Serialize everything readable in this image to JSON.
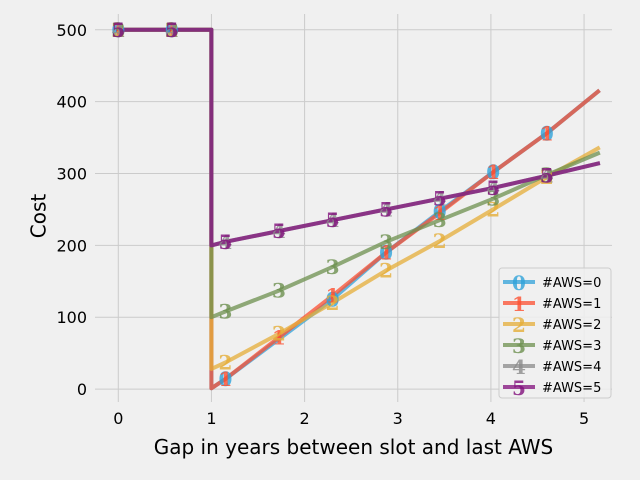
{
  "chart_data": {
    "type": "line",
    "title": "",
    "xlabel": "Gap in years between slot and last AWS",
    "ylabel": "Cost",
    "xlim": [
      -0.25,
      5.3
    ],
    "ylim": [
      -18,
      522
    ],
    "x_ticks": [
      "0",
      "1",
      "2",
      "3",
      "4",
      "5"
    ],
    "y_ticks": [
      "0",
      "100",
      "200",
      "300",
      "400",
      "500"
    ],
    "grid": true,
    "legend_position": "lower-right",
    "marker_x": [
      0,
      0.575,
      1.15,
      1.725,
      2.3,
      2.875,
      3.45,
      4.025,
      4.6
    ],
    "series": [
      {
        "name": "#AWS=0",
        "marker": "0",
        "color": "#30a2da",
        "points": [
          [
            0,
            500
          ],
          [
            1,
            500
          ],
          [
            1,
            1
          ],
          [
            1.15,
            14
          ],
          [
            2.3,
            125
          ],
          [
            2.875,
            190
          ],
          [
            3.45,
            247
          ],
          [
            4.025,
            302
          ],
          [
            4.6,
            356
          ],
          [
            5.15,
            414
          ]
        ],
        "marker_points": [
          [
            0,
            500
          ],
          [
            0.575,
            500
          ],
          [
            1.15,
            14
          ],
          [
            2.3,
            125
          ],
          [
            2.875,
            190
          ],
          [
            3.45,
            247
          ],
          [
            4.025,
            302
          ],
          [
            4.6,
            356
          ]
        ]
      },
      {
        "name": "#AWS=1",
        "marker": "1",
        "color": "#fc4f30",
        "points": [
          [
            0,
            500
          ],
          [
            1,
            500
          ],
          [
            1,
            1
          ],
          [
            1.15,
            14
          ],
          [
            1.725,
            72
          ],
          [
            2.3,
            130
          ],
          [
            2.875,
            190
          ],
          [
            3.45,
            245
          ],
          [
            4.025,
            302
          ],
          [
            4.6,
            356
          ],
          [
            5.15,
            414
          ]
        ],
        "marker_points": [
          [
            0,
            500
          ],
          [
            0.575,
            500
          ],
          [
            1.15,
            14
          ],
          [
            1.725,
            72
          ],
          [
            2.3,
            130
          ],
          [
            2.875,
            190
          ],
          [
            3.45,
            245
          ],
          [
            4.025,
            302
          ],
          [
            4.6,
            356
          ]
        ]
      },
      {
        "name": "#AWS=2",
        "marker": "2",
        "color": "#e5ae38",
        "points": [
          [
            0,
            500
          ],
          [
            1,
            500
          ],
          [
            1,
            28
          ],
          [
            1.15,
            37
          ],
          [
            1.725,
            77
          ],
          [
            2.3,
            120
          ],
          [
            2.875,
            165
          ],
          [
            3.45,
            206
          ],
          [
            4.025,
            250
          ],
          [
            4.6,
            295
          ],
          [
            5.15,
            335
          ]
        ],
        "marker_points": [
          [
            0,
            500
          ],
          [
            0.575,
            500
          ],
          [
            1.15,
            37
          ],
          [
            1.725,
            77
          ],
          [
            2.3,
            120
          ],
          [
            2.875,
            165
          ],
          [
            3.45,
            206
          ],
          [
            4.025,
            250
          ],
          [
            4.6,
            295
          ]
        ]
      },
      {
        "name": "#AWS=3",
        "marker": "3",
        "color": "#6d904f",
        "points": [
          [
            0,
            500
          ],
          [
            1,
            500
          ],
          [
            1,
            200
          ],
          [
            1,
            100
          ],
          [
            1.15,
            108
          ],
          [
            1.725,
            137
          ],
          [
            2.3,
            170
          ],
          [
            2.875,
            205
          ],
          [
            3.45,
            235
          ],
          [
            4.025,
            265
          ],
          [
            4.6,
            298
          ],
          [
            5.15,
            328
          ]
        ],
        "marker_points": [
          [
            0,
            500
          ],
          [
            0.575,
            500
          ],
          [
            1.15,
            108
          ],
          [
            1.725,
            137
          ],
          [
            2.3,
            170
          ],
          [
            2.875,
            205
          ],
          [
            3.45,
            235
          ],
          [
            4.025,
            265
          ],
          [
            4.6,
            298
          ]
        ]
      },
      {
        "name": "#AWS=4",
        "marker": "4",
        "color": "#8b8b8b",
        "points": [
          [
            0,
            500
          ],
          [
            1,
            500
          ],
          [
            1,
            200
          ],
          [
            1.15,
            205
          ],
          [
            1.725,
            220
          ],
          [
            2.3,
            235
          ],
          [
            2.875,
            250
          ],
          [
            3.45,
            265
          ],
          [
            4.025,
            280
          ],
          [
            4.6,
            297
          ],
          [
            5.15,
            314
          ]
        ],
        "marker_points": [
          [
            0,
            500
          ],
          [
            0.575,
            500
          ],
          [
            1.15,
            205
          ],
          [
            1.725,
            220
          ],
          [
            2.3,
            235
          ],
          [
            2.875,
            250
          ],
          [
            3.45,
            265
          ],
          [
            4.025,
            280
          ],
          [
            4.6,
            297
          ]
        ]
      },
      {
        "name": "#AWS=5",
        "marker": "5",
        "color": "#810f7c",
        "points": [
          [
            0,
            500
          ],
          [
            1,
            500
          ],
          [
            1,
            200
          ],
          [
            1.15,
            205
          ],
          [
            1.725,
            220
          ],
          [
            2.3,
            235
          ],
          [
            2.875,
            250
          ],
          [
            3.45,
            265
          ],
          [
            4.025,
            280
          ],
          [
            4.6,
            297
          ],
          [
            5.15,
            314
          ]
        ],
        "marker_points": [
          [
            0,
            500
          ],
          [
            0.575,
            500
          ],
          [
            1.15,
            205
          ],
          [
            1.725,
            220
          ],
          [
            2.3,
            235
          ],
          [
            2.875,
            250
          ],
          [
            3.45,
            265
          ],
          [
            4.025,
            280
          ],
          [
            4.6,
            297
          ]
        ]
      }
    ]
  }
}
